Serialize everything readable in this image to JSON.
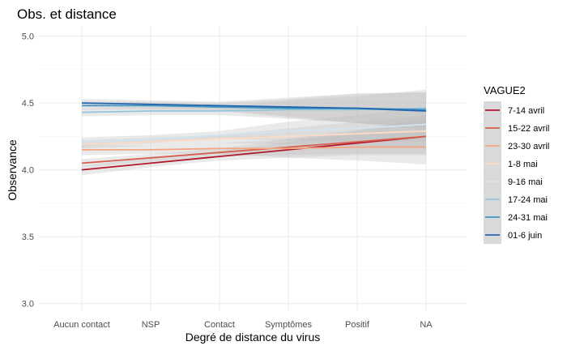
{
  "chart_data": {
    "type": "line",
    "title": "Obs. et distance",
    "xlabel": "Degré de distance du virus",
    "ylabel": "Observance",
    "categories": [
      "Aucun contact",
      "NSP",
      "Contact",
      "Symptômes",
      "Positif",
      "NA"
    ],
    "ylim": [
      2.95,
      5.07
    ],
    "yticks": [
      "3.0",
      "3.5",
      "4.0",
      "4.5",
      "5.0"
    ],
    "grid": true,
    "legend": {
      "title": "VAGUE2",
      "position": "right"
    },
    "band_color": "#bebebe",
    "panel_background": "#ffffff",
    "series": [
      {
        "name": "7-14 avril",
        "color": "#b2182b",
        "values": [
          4.0,
          4.05,
          4.1,
          4.15,
          4.2,
          4.25
        ],
        "ci_low": [
          3.96,
          4.02,
          4.07,
          4.09,
          4.11,
          4.11
        ],
        "ci_high": [
          4.03,
          4.09,
          4.14,
          4.21,
          4.29,
          4.39
        ]
      },
      {
        "name": "15-22 avril",
        "color": "#d6604d",
        "values": [
          4.05,
          4.09,
          4.13,
          4.17,
          4.21,
          4.25
        ],
        "ci_low": [
          4.02,
          4.06,
          4.1,
          4.11,
          4.12,
          4.12
        ],
        "ci_high": [
          4.08,
          4.12,
          4.16,
          4.23,
          4.3,
          4.38
        ]
      },
      {
        "name": "23-30 avril",
        "color": "#f4a582",
        "values": [
          4.15,
          4.15,
          4.16,
          4.16,
          4.17,
          4.17
        ],
        "ci_low": [
          4.11,
          4.12,
          4.12,
          4.09,
          4.07,
          4.04
        ],
        "ci_high": [
          4.19,
          4.18,
          4.2,
          4.23,
          4.27,
          4.3
        ]
      },
      {
        "name": "1-8 mai",
        "color": "#fddbc7",
        "values": [
          4.19,
          4.21,
          4.23,
          4.25,
          4.27,
          4.29
        ],
        "ci_low": [
          4.16,
          4.18,
          4.2,
          4.19,
          4.18,
          4.17
        ],
        "ci_high": [
          4.22,
          4.24,
          4.26,
          4.31,
          4.36,
          4.41
        ]
      },
      {
        "name": "9-16 mai",
        "color": "#d1e5f0",
        "values": [
          4.21,
          4.23,
          4.26,
          4.29,
          4.31,
          4.34
        ],
        "ci_low": [
          4.18,
          4.2,
          4.23,
          4.22,
          4.21,
          4.21
        ],
        "ci_high": [
          4.24,
          4.26,
          4.29,
          4.36,
          4.41,
          4.47
        ]
      },
      {
        "name": "17-24 mai",
        "color": "#92c5de",
        "values": [
          4.43,
          4.44,
          4.44,
          4.45,
          4.45,
          4.46
        ],
        "ci_low": [
          4.4,
          4.41,
          4.41,
          4.38,
          4.35,
          4.32
        ],
        "ci_high": [
          4.46,
          4.47,
          4.47,
          4.52,
          4.55,
          4.6
        ]
      },
      {
        "name": "24-31 mai",
        "color": "#4393c3",
        "values": [
          4.48,
          4.48,
          4.47,
          4.46,
          4.46,
          4.45
        ],
        "ci_low": [
          4.45,
          4.45,
          4.44,
          4.39,
          4.35,
          4.32
        ],
        "ci_high": [
          4.51,
          4.51,
          4.5,
          4.53,
          4.57,
          4.58
        ]
      },
      {
        "name": "01-6 juin",
        "color": "#2166ac",
        "values": [
          4.5,
          4.49,
          4.48,
          4.47,
          4.46,
          4.44
        ],
        "ci_low": [
          4.47,
          4.46,
          4.45,
          4.4,
          4.35,
          4.3
        ],
        "ci_high": [
          4.53,
          4.52,
          4.51,
          4.54,
          4.57,
          4.58
        ]
      }
    ]
  }
}
